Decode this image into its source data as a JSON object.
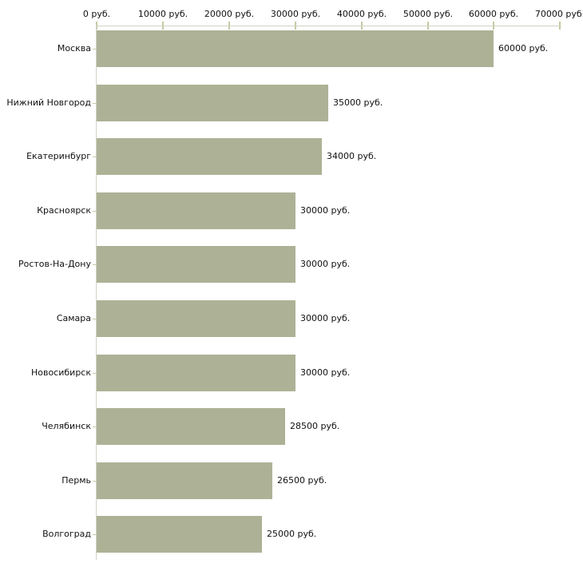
{
  "chart_data": {
    "type": "bar",
    "orientation": "horizontal",
    "title": "",
    "categories": [
      "Москва",
      "Нижний Новгород",
      "Екатеринбург",
      "Красноярск",
      "Ростов-На-Дону",
      "Самара",
      "Новосибирск",
      "Челябинск",
      "Пермь",
      "Волгоград"
    ],
    "values": [
      60000,
      35000,
      34000,
      30000,
      30000,
      30000,
      30000,
      28500,
      26500,
      25000
    ],
    "value_labels": [
      "60000 руб.",
      "35000 руб.",
      "34000 руб.",
      "30000 руб.",
      "30000 руб.",
      "30000 руб.",
      "30000 руб.",
      "28500 руб.",
      "26500 руб.",
      "25000 руб."
    ],
    "x_axis": {
      "position": "top",
      "tick_values": [
        0,
        10000,
        20000,
        30000,
        40000,
        50000,
        60000,
        70000
      ],
      "tick_labels": [
        "0 руб.",
        "10000 руб.",
        "20000 руб.",
        "30000 руб.",
        "40000 руб.",
        "50000 руб.",
        "60000 руб.",
        "70000 руб."
      ],
      "unit": "руб."
    },
    "xlim": [
      0,
      70000
    ],
    "grid": false,
    "legend": false,
    "colors": {
      "bar": "#adb296",
      "axis_line": "#d2d2c6",
      "tick": "#c5c9a2",
      "text": "#111111",
      "background": "#ffffff"
    }
  }
}
